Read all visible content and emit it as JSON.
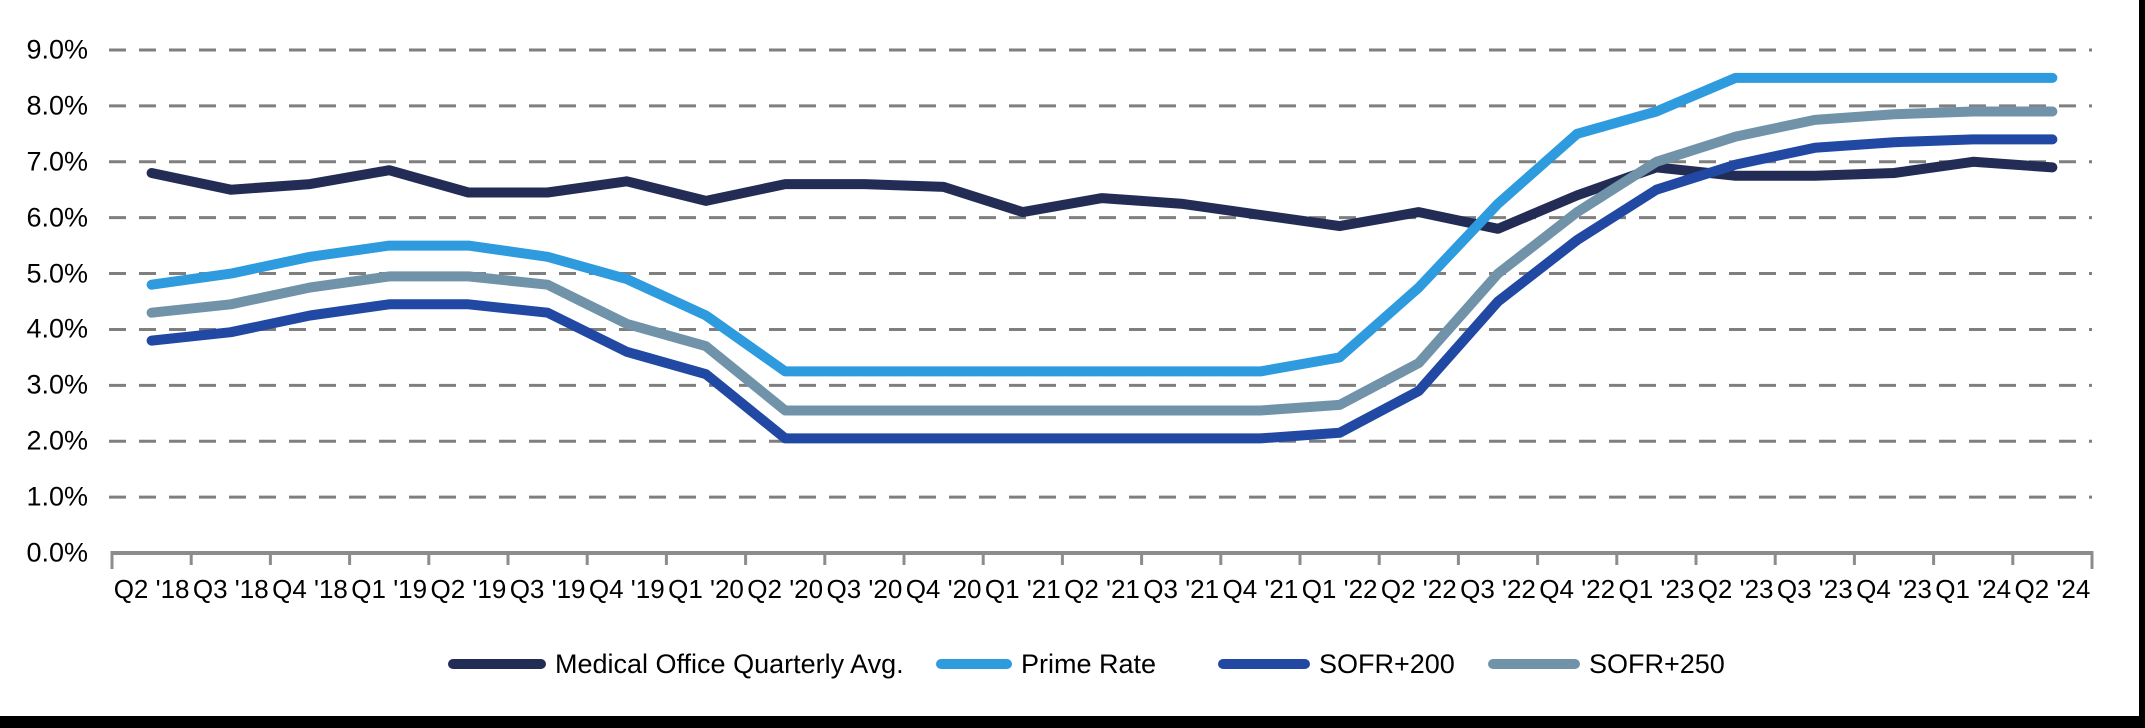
{
  "chart_data": {
    "type": "line",
    "title": "",
    "categories": [
      "Q2 '18",
      "Q3 '18",
      "Q4 '18",
      "Q1 '19",
      "Q2 '19",
      "Q3 '19",
      "Q4 '19",
      "Q1 '20",
      "Q2 '20",
      "Q3 '20",
      "Q4 '20",
      "Q1 '21",
      "Q2 '21",
      "Q3 '21",
      "Q4 '21",
      "Q1 '22",
      "Q2 '22",
      "Q3 '22",
      "Q4 '22",
      "Q1 '23",
      "Q2 '23",
      "Q3 '23",
      "Q4 '23",
      "Q1 '24",
      "Q2 '24"
    ],
    "series": [
      {
        "name": "Medical Office Quarterly Avg.",
        "color": "#232C55",
        "values": [
          6.8,
          6.5,
          6.6,
          6.85,
          6.45,
          6.45,
          6.65,
          6.3,
          6.6,
          6.6,
          6.55,
          6.1,
          6.35,
          6.25,
          6.05,
          5.85,
          6.1,
          5.8,
          6.4,
          6.9,
          6.75,
          6.75,
          6.8,
          7.0,
          6.9
        ]
      },
      {
        "name": "Prime Rate",
        "color": "#2E9BDF",
        "values": [
          4.8,
          5.0,
          5.3,
          5.5,
          5.5,
          5.3,
          4.9,
          4.25,
          3.25,
          3.25,
          3.25,
          3.25,
          3.25,
          3.25,
          3.25,
          3.5,
          4.75,
          6.25,
          7.5,
          7.9,
          8.5,
          8.5,
          8.5,
          8.5,
          8.5
        ]
      },
      {
        "name": "SOFR+200",
        "color": "#2149A3",
        "values": [
          3.8,
          3.95,
          4.25,
          4.45,
          4.45,
          4.3,
          3.6,
          3.2,
          2.05,
          2.05,
          2.05,
          2.05,
          2.05,
          2.05,
          2.05,
          2.15,
          2.9,
          4.5,
          5.6,
          6.5,
          6.95,
          7.25,
          7.35,
          7.4,
          7.4
        ]
      },
      {
        "name": "SOFR+250",
        "color": "#7093A9",
        "values": [
          4.3,
          4.45,
          4.75,
          4.95,
          4.95,
          4.8,
          4.1,
          3.7,
          2.55,
          2.55,
          2.55,
          2.55,
          2.55,
          2.55,
          2.55,
          2.65,
          3.4,
          5.0,
          6.1,
          7.0,
          7.45,
          7.75,
          7.85,
          7.9,
          7.9
        ]
      }
    ],
    "y_axis": {
      "min": 0,
      "max": 9,
      "step": 1,
      "tick_labels": [
        "0.0%",
        "1.0%",
        "2.0%",
        "3.0%",
        "4.0%",
        "5.0%",
        "6.0%",
        "7.0%",
        "8.0%",
        "9.0%"
      ]
    },
    "x_axis": {
      "tick_labels": [
        "Q2 '18",
        "Q3 '18",
        "Q4 '18",
        "Q1 '19",
        "Q2 '19",
        "Q3 '19",
        "Q4 '19",
        "Q1 '20",
        "Q2 '20",
        "Q3 '20",
        "Q4 '20",
        "Q1 '21",
        "Q2 '21",
        "Q3 '21",
        "Q4 '21",
        "Q1 '22",
        "Q2 '22",
        "Q3 '22",
        "Q4 '22",
        "Q1 '23",
        "Q2 '23",
        "Q3 '23",
        "Q4 '23",
        "Q1 '24",
        "Q2 '24"
      ]
    },
    "grid": {
      "visible": true,
      "style": "dashed",
      "color": "#7F7F7F",
      "axis_color": "#8C8C8C"
    },
    "legend_position": "bottom",
    "ylim": [
      0,
      9
    ]
  },
  "frame": {
    "bottom_bar_color": "#000000",
    "right_edge_color": "#000000"
  }
}
